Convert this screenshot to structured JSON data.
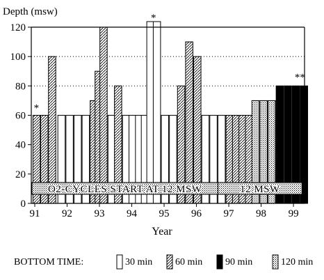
{
  "chart_data": {
    "type": "bar",
    "ylabel": "Depth (msw)",
    "xlabel": "Year",
    "ylim": [
      0,
      120
    ],
    "yticks": [
      0,
      20,
      40,
      60,
      80,
      100,
      120
    ],
    "xticks": [
      "91",
      "92",
      "93",
      "94",
      "95",
      "96",
      "97",
      "98",
      "99"
    ],
    "grid": "dotted-horizontal-at-80-100-120",
    "colors": {
      "stroke": "#000000",
      "fill_30": "#ffffff",
      "fill_90": "#000000"
    },
    "legend": {
      "title": "BOTTOM TIME:",
      "placement": "bottom",
      "entries": [
        {
          "key": "30",
          "label": "30 min",
          "pattern": "open"
        },
        {
          "key": "60",
          "label": "60 min",
          "pattern": "hatch"
        },
        {
          "key": "90",
          "label": "90 min",
          "pattern": "solid"
        },
        {
          "key": "120",
          "label": "120 min",
          "pattern": "dots"
        }
      ]
    },
    "annotations": [
      {
        "text": "*",
        "near": "first bar (1991)"
      },
      {
        "text": "*",
        "near": "top of tall bar (1994-95)"
      },
      {
        "text": "**",
        "near": "last bars (1999)"
      }
    ],
    "bands": [
      {
        "text": "O2-CYCLES START AT 12 MSW",
        "from": 91.0,
        "to": 96.75
      },
      {
        "text": "12 MSW",
        "from": 96.75,
        "to": 99.35
      }
    ],
    "bars": [
      {
        "x": 91.03,
        "depth": 60,
        "bottom_time": "60"
      },
      {
        "x": 91.27,
        "depth": 60,
        "bottom_time": "60"
      },
      {
        "x": 91.51,
        "depth": 100,
        "bottom_time": "60"
      },
      {
        "x": 91.8,
        "depth": 60,
        "bottom_time": "30"
      },
      {
        "x": 92.05,
        "depth": 60,
        "bottom_time": "30"
      },
      {
        "x": 92.3,
        "depth": 60,
        "bottom_time": "30"
      },
      {
        "x": 92.55,
        "depth": 60,
        "bottom_time": "30"
      },
      {
        "x": 92.8,
        "depth": 70,
        "bottom_time": "60"
      },
      {
        "x": 92.95,
        "depth": 90,
        "bottom_time": "60"
      },
      {
        "x": 93.1,
        "depth": 120,
        "bottom_time": "60"
      },
      {
        "x": 93.35,
        "depth": 60,
        "bottom_time": "30"
      },
      {
        "x": 93.55,
        "depth": 80,
        "bottom_time": "60"
      },
      {
        "x": 93.8,
        "depth": 60,
        "bottom_time": "30"
      },
      {
        "x": 94.0,
        "depth": 60,
        "bottom_time": "30"
      },
      {
        "x": 94.2,
        "depth": 60,
        "bottom_time": "30"
      },
      {
        "x": 94.38,
        "depth": 60,
        "bottom_time": "30"
      },
      {
        "x": 94.55,
        "depth": 125,
        "bottom_time": "30"
      },
      {
        "x": 94.75,
        "depth": 125,
        "bottom_time": "30"
      },
      {
        "x": 95.0,
        "depth": 60,
        "bottom_time": "30"
      },
      {
        "x": 95.25,
        "depth": 60,
        "bottom_time": "30"
      },
      {
        "x": 95.5,
        "depth": 80,
        "bottom_time": "60"
      },
      {
        "x": 95.75,
        "depth": 110,
        "bottom_time": "60"
      },
      {
        "x": 96.0,
        "depth": 100,
        "bottom_time": "60"
      },
      {
        "x": 96.25,
        "depth": 60,
        "bottom_time": "30"
      },
      {
        "x": 96.5,
        "depth": 60,
        "bottom_time": "30"
      },
      {
        "x": 96.75,
        "depth": 60,
        "bottom_time": "30"
      },
      {
        "x": 97.0,
        "depth": 60,
        "bottom_time": "60"
      },
      {
        "x": 97.2,
        "depth": 60,
        "bottom_time": "60"
      },
      {
        "x": 97.4,
        "depth": 60,
        "bottom_time": "60"
      },
      {
        "x": 97.6,
        "depth": 60,
        "bottom_time": "60"
      },
      {
        "x": 97.8,
        "depth": 70,
        "bottom_time": "120"
      },
      {
        "x": 98.05,
        "depth": 70,
        "bottom_time": "120"
      },
      {
        "x": 98.3,
        "depth": 70,
        "bottom_time": "120"
      },
      {
        "x": 98.55,
        "depth": 80,
        "bottom_time": "90"
      },
      {
        "x": 98.8,
        "depth": 80,
        "bottom_time": "90"
      },
      {
        "x": 99.05,
        "depth": 80,
        "bottom_time": "90"
      },
      {
        "x": 99.3,
        "depth": 80,
        "bottom_time": "90"
      }
    ]
  }
}
